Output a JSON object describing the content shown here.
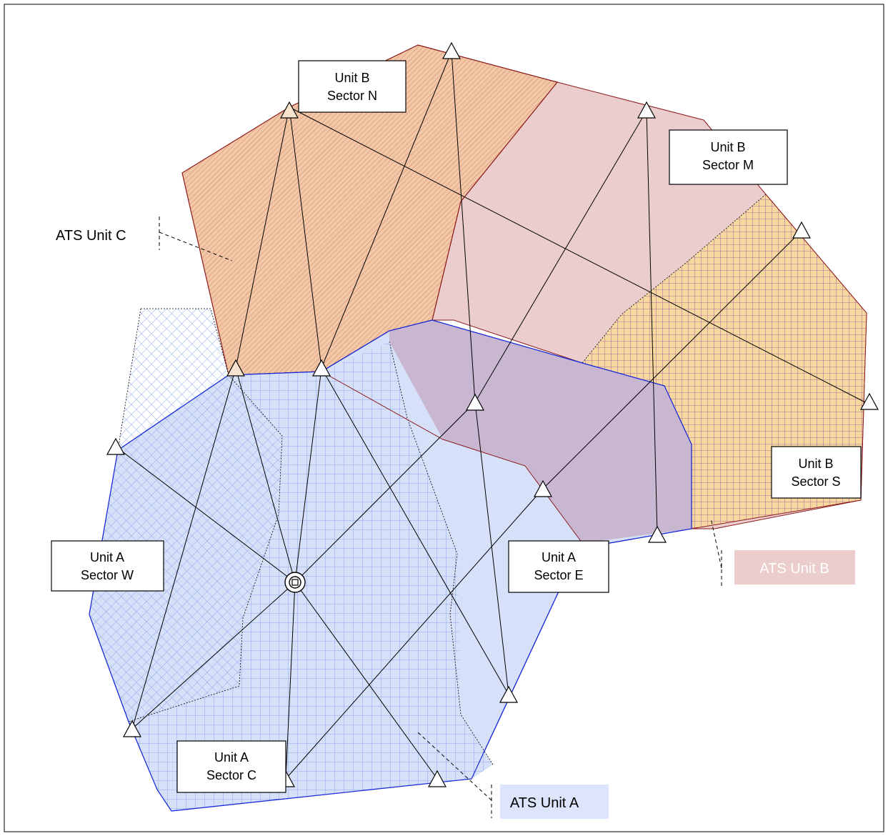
{
  "labels": {
    "unit_b_sector_n": [
      "Unit B",
      "Sector N"
    ],
    "unit_b_sector_m": [
      "Unit B",
      "Sector M"
    ],
    "unit_b_sector_s": [
      "Unit B",
      "Sector S"
    ],
    "unit_a_sector_w": [
      "Unit A",
      "Sector W"
    ],
    "unit_a_sector_e": [
      "Unit A",
      "Sector E"
    ],
    "unit_a_sector_c": [
      "Unit A",
      "Sector C"
    ],
    "ats_unit_c": "ATS Unit C",
    "ats_unit_b": "ATS Unit B",
    "ats_unit_a": "ATS Unit A"
  },
  "colors": {
    "unit_c_fill": "#f2c8a8",
    "unit_c_hatch": "#d88b66",
    "unit_c_border": "#8b1a1a",
    "unit_b_fill": "#ebcdcd",
    "unit_b_sector_s_fill": "#f7d9a0",
    "unit_b_sector_s_grid": "#b070a0",
    "unit_a_fill": "#d6e0f8",
    "unit_a_grid": "#8fa8ea",
    "unit_a_border": "#1a2ad8",
    "overlap_fill": "#c8b4d0",
    "ats_unit_b_box": "#ebcdcd",
    "ats_unit_a_box": "#dce5fb"
  }
}
